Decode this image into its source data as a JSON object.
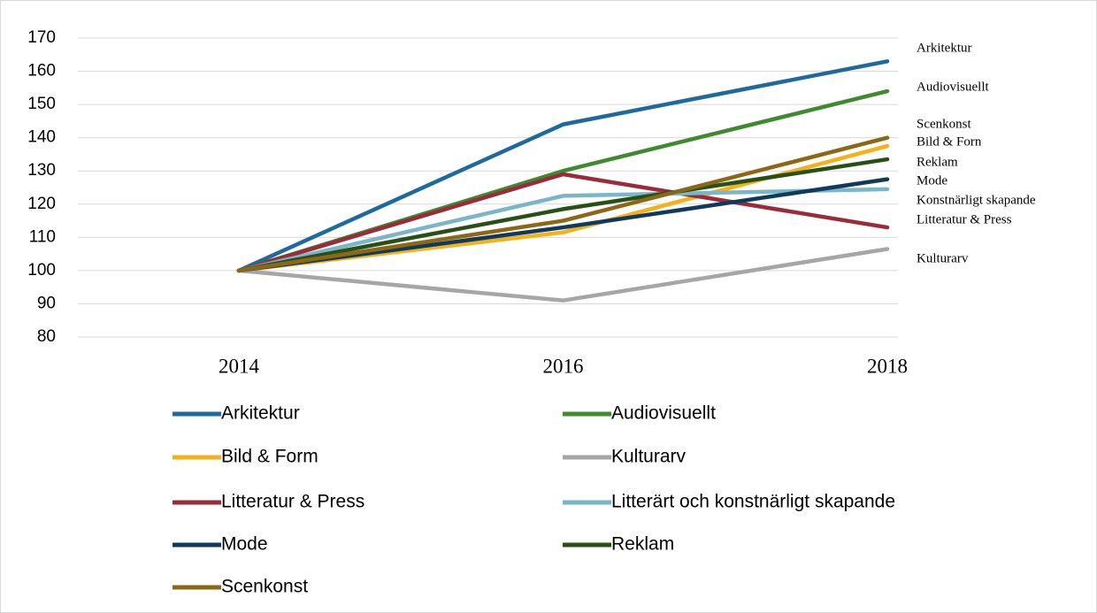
{
  "chart_data": {
    "type": "line",
    "categories": [
      "2014",
      "2016",
      "2018"
    ],
    "series": [
      {
        "name": "Arkitektur",
        "color": "#1f6a9c",
        "values": [
          100,
          144,
          163
        ]
      },
      {
        "name": "Audiovisuellt",
        "color": "#3f8a2f",
        "values": [
          100,
          130,
          154
        ]
      },
      {
        "name": "Bild & Form",
        "color": "#f4b11a",
        "values": [
          100,
          111.5,
          137.5
        ]
      },
      {
        "name": "Kulturarv",
        "color": "#a6a6a6",
        "values": [
          100,
          91,
          106.5
        ]
      },
      {
        "name": "Litteratur & Press",
        "color": "#9b2a3b",
        "values": [
          100,
          129,
          113
        ]
      },
      {
        "name": "Litterärt och konstnärligt skapande",
        "color": "#7ab5c9",
        "values": [
          100,
          122.5,
          124.5
        ]
      },
      {
        "name": "Mode",
        "color": "#103a5c",
        "values": [
          100,
          113,
          127.5
        ]
      },
      {
        "name": "Reklam",
        "color": "#284f16",
        "values": [
          100,
          118.5,
          133.5
        ]
      },
      {
        "name": "Scenkonst",
        "color": "#8c6816",
        "values": [
          100,
          115,
          140
        ]
      }
    ],
    "annotations": [
      "Arkitektur",
      "Audiovisuellt",
      "Scenkonst",
      "Bild & Forn",
      "Reklam",
      "Mode",
      "Konstnärligt skapande",
      "Litteratur & Press",
      "Kulturarv"
    ],
    "ylim": [
      80,
      170
    ],
    "yticks": [
      80,
      90,
      100,
      110,
      120,
      130,
      140,
      150,
      160,
      170
    ],
    "grid": true
  }
}
